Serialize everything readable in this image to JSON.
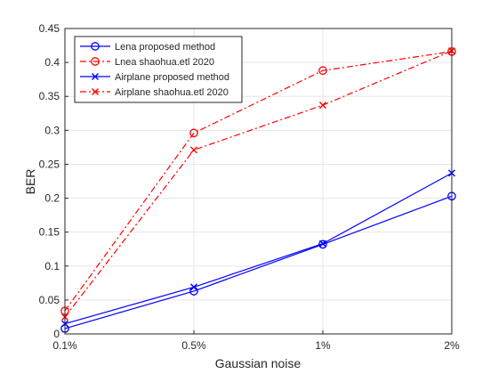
{
  "chart_data": {
    "type": "line",
    "title": "",
    "xlabel": "Gaussian noise",
    "ylabel": "BER",
    "categories": [
      "0.1%",
      "0.5%",
      "1%",
      "2%"
    ],
    "ylim": [
      0,
      0.45
    ],
    "yticks": [
      0,
      0.05,
      0.1,
      0.15,
      0.2,
      0.25,
      0.3,
      0.35,
      0.4,
      0.45
    ],
    "ytick_labels": [
      "0",
      "0.05",
      "0.1",
      "0.15",
      "0.2",
      "0.25",
      "0.3",
      "0.35",
      "0.4",
      "0.45"
    ],
    "grid": true,
    "legend_position": "top-left",
    "series": [
      {
        "name": "Lena proposed method",
        "values": [
          0.008,
          0.063,
          0.132,
          0.203
        ],
        "color": "#0000ff",
        "linestyle": "solid",
        "marker": "circle"
      },
      {
        "name": "Lnea shaohua.etl 2020",
        "values": [
          0.034,
          0.296,
          0.388,
          0.416
        ],
        "color": "#ff0000",
        "linestyle": "dashdot",
        "marker": "circle"
      },
      {
        "name": "Airplane proposed method",
        "values": [
          0.015,
          0.069,
          0.133,
          0.237
        ],
        "color": "#0000ff",
        "linestyle": "solid",
        "marker": "x"
      },
      {
        "name": "Airplane shaohua.etl 2020",
        "values": [
          0.025,
          0.271,
          0.337,
          0.417
        ],
        "color": "#ff0000",
        "linestyle": "dashdot",
        "marker": "x"
      }
    ]
  }
}
